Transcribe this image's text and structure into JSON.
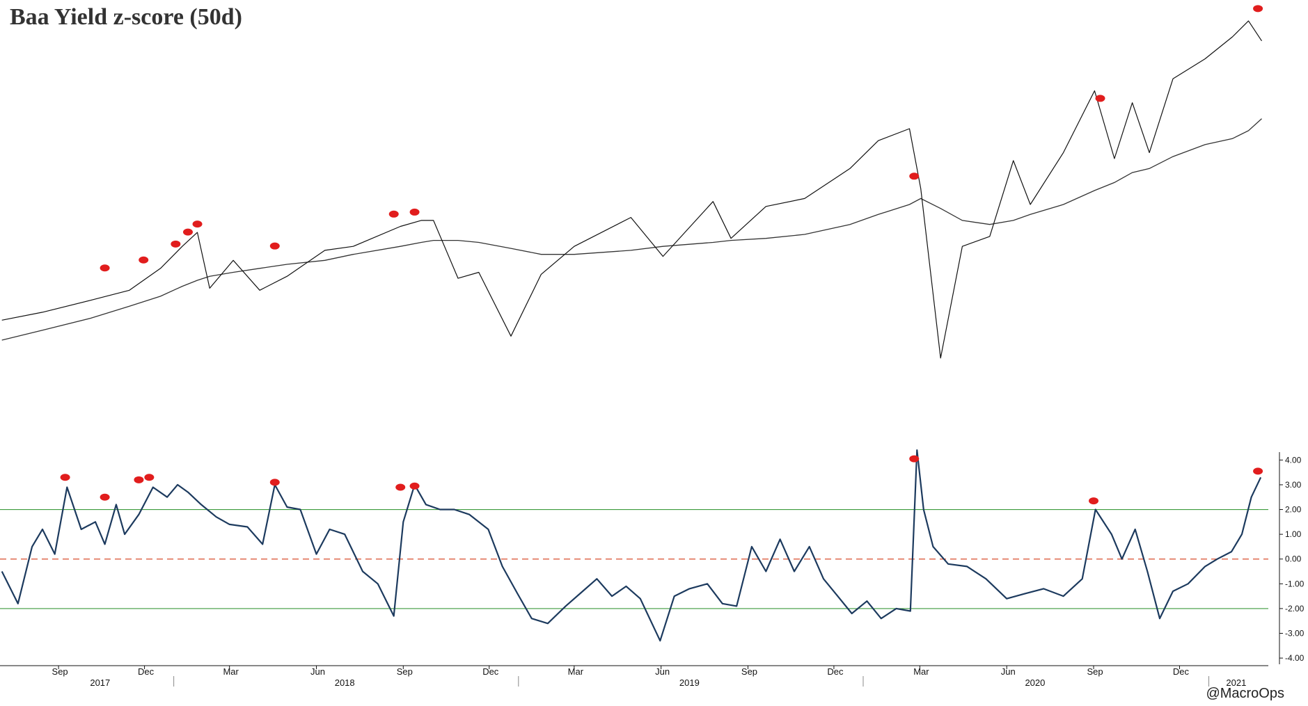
{
  "title": "Baa Yield z-score (50d)",
  "credit": "@MacroOps",
  "chart_data": [
    {
      "type": "line",
      "panel": "price",
      "title": "",
      "y_axis_labels": "none",
      "colors": {
        "price": "#111111",
        "moving_average": "#333333",
        "marker": "#e11d1d"
      },
      "x_dates": [
        "2017-07-03",
        "2017-08-15",
        "2017-10-05",
        "2017-11-15",
        "2017-12-18",
        "2018-01-10",
        "2018-01-26",
        "2018-02-08",
        "2018-03-05",
        "2018-04-02",
        "2018-05-01",
        "2018-06-10",
        "2018-07-10",
        "2018-08-29",
        "2018-09-20",
        "2018-10-03",
        "2018-10-29",
        "2018-11-20",
        "2018-12-24",
        "2019-01-25",
        "2019-03-01",
        "2019-04-30",
        "2019-06-03",
        "2019-07-26",
        "2019-08-14",
        "2019-09-20",
        "2019-10-31",
        "2019-12-18",
        "2020-01-17",
        "2020-02-19",
        "2020-03-02",
        "2020-03-23",
        "2020-04-15",
        "2020-05-14",
        "2020-06-08",
        "2020-06-26",
        "2020-07-31",
        "2020-09-02",
        "2020-09-23",
        "2020-10-12",
        "2020-10-30",
        "2020-11-24",
        "2020-12-28",
        "2021-01-26",
        "2021-02-12",
        "2021-02-26"
      ],
      "price": [
        2430,
        2470,
        2530,
        2580,
        2690,
        2800,
        2870,
        2590,
        2730,
        2580,
        2650,
        2780,
        2800,
        2900,
        2930,
        2930,
        2640,
        2670,
        2350,
        2660,
        2800,
        2945,
        2750,
        3025,
        2840,
        3000,
        3040,
        3190,
        3330,
        3390,
        3090,
        2240,
        2800,
        2850,
        3230,
        3010,
        3270,
        3580,
        3240,
        3520,
        3270,
        3640,
        3740,
        3850,
        3930,
        3830
      ],
      "moving_average": [
        2330,
        2380,
        2440,
        2500,
        2550,
        2600,
        2630,
        2650,
        2670,
        2690,
        2710,
        2730,
        2760,
        2800,
        2820,
        2830,
        2830,
        2820,
        2790,
        2760,
        2760,
        2780,
        2800,
        2820,
        2830,
        2840,
        2860,
        2910,
        2960,
        3010,
        3040,
        2990,
        2930,
        2910,
        2930,
        2960,
        3010,
        3080,
        3120,
        3170,
        3190,
        3250,
        3310,
        3340,
        3380,
        3440
      ],
      "signals": [
        {
          "date": "2017-10-20",
          "value": 2650
        },
        {
          "date": "2017-11-30",
          "value": 2690
        },
        {
          "date": "2018-01-03",
          "value": 2770
        },
        {
          "date": "2018-01-16",
          "value": 2830
        },
        {
          "date": "2018-01-26",
          "value": 2870
        },
        {
          "date": "2018-04-18",
          "value": 2760
        },
        {
          "date": "2018-08-22",
          "value": 2920
        },
        {
          "date": "2018-09-13",
          "value": 2930
        },
        {
          "date": "2020-02-24",
          "value": 3110
        },
        {
          "date": "2020-09-08",
          "value": 3500
        },
        {
          "date": "2021-02-22",
          "value": 3950
        }
      ],
      "ylim": [
        2100,
        4000
      ]
    },
    {
      "type": "line",
      "panel": "zscore",
      "title": "",
      "y_ticks": [
        "4.00",
        "3.00",
        "2.00",
        "1.00",
        "0.00",
        "-1.00",
        "-2.00",
        "-3.00",
        "-4.00"
      ],
      "y_tick_values": [
        4,
        3,
        2,
        1,
        0,
        -1,
        -2,
        -3,
        -4
      ],
      "ylim": [
        -4.25,
        4.6
      ],
      "reference_lines": [
        {
          "value": 2,
          "color": "#3c9a3c",
          "style": "solid"
        },
        {
          "value": 0,
          "color": "#d94c2c",
          "style": "dashed"
        },
        {
          "value": -2,
          "color": "#3c9a3c",
          "style": "solid"
        }
      ],
      "colors": {
        "line": "#1c3a5e",
        "marker": "#e11d1d"
      },
      "x_dates": [
        "2017-07-03",
        "2017-07-20",
        "2017-08-04",
        "2017-08-15",
        "2017-08-28",
        "2017-09-10",
        "2017-09-25",
        "2017-10-10",
        "2017-10-20",
        "2017-11-01",
        "2017-11-10",
        "2017-11-25",
        "2017-12-10",
        "2017-12-25",
        "2018-01-05",
        "2018-01-16",
        "2018-01-30",
        "2018-02-15",
        "2018-03-01",
        "2018-03-20",
        "2018-04-05",
        "2018-04-18",
        "2018-05-01",
        "2018-05-15",
        "2018-06-01",
        "2018-06-15",
        "2018-07-01",
        "2018-07-20",
        "2018-08-05",
        "2018-08-22",
        "2018-09-01",
        "2018-09-13",
        "2018-09-25",
        "2018-10-10",
        "2018-10-25",
        "2018-11-10",
        "2018-11-30",
        "2018-12-15",
        "2018-12-31",
        "2019-01-15",
        "2019-02-01",
        "2019-02-20",
        "2019-03-10",
        "2019-03-25",
        "2019-04-10",
        "2019-04-25",
        "2019-05-10",
        "2019-05-31",
        "2019-06-15",
        "2019-07-01",
        "2019-07-20",
        "2019-08-05",
        "2019-08-20",
        "2019-09-05",
        "2019-09-20",
        "2019-10-05",
        "2019-10-20",
        "2019-11-05",
        "2019-11-20",
        "2019-12-05",
        "2019-12-20",
        "2020-01-05",
        "2020-01-20",
        "2020-02-05",
        "2020-02-20",
        "2020-02-27",
        "2020-03-05",
        "2020-03-15",
        "2020-03-31",
        "2020-04-20",
        "2020-05-10",
        "2020-06-01",
        "2020-06-20",
        "2020-07-10",
        "2020-07-31",
        "2020-08-20",
        "2020-09-03",
        "2020-09-20",
        "2020-10-01",
        "2020-10-15",
        "2020-10-28",
        "2020-11-10",
        "2020-11-24",
        "2020-12-10",
        "2020-12-28",
        "2021-01-10",
        "2021-01-25",
        "2021-02-05",
        "2021-02-15",
        "2021-02-25"
      ],
      "values": [
        -0.5,
        -1.8,
        0.5,
        1.2,
        0.2,
        2.9,
        1.2,
        1.5,
        0.6,
        2.2,
        1.0,
        1.8,
        2.9,
        2.5,
        3.0,
        2.7,
        2.2,
        1.7,
        1.4,
        1.3,
        0.6,
        3.0,
        2.1,
        2.0,
        0.2,
        1.2,
        1.0,
        -0.5,
        -1.0,
        -2.3,
        1.5,
        3.0,
        2.2,
        2.0,
        2.0,
        1.8,
        1.2,
        -0.3,
        -1.4,
        -2.4,
        -2.6,
        -1.9,
        -1.3,
        -0.8,
        -1.5,
        -1.1,
        -1.6,
        -3.3,
        -1.5,
        -1.2,
        -1.0,
        -1.8,
        -1.9,
        0.5,
        -0.5,
        0.8,
        -0.5,
        0.5,
        -0.8,
        -1.5,
        -2.2,
        -1.7,
        -2.4,
        -2.0,
        -2.1,
        4.4,
        2.0,
        0.5,
        -0.2,
        -0.3,
        -0.8,
        -1.6,
        -1.4,
        -1.2,
        -1.5,
        -0.8,
        2.0,
        1.0,
        0.0,
        1.2,
        -0.5,
        -2.4,
        -1.3,
        -1.0,
        -0.3,
        0.0,
        0.3,
        1.0,
        2.5,
        3.3
      ],
      "signals": [
        {
          "date": "2017-09-08",
          "value": 3.3
        },
        {
          "date": "2017-10-20",
          "value": 2.5
        },
        {
          "date": "2017-11-25",
          "value": 3.2
        },
        {
          "date": "2017-12-06",
          "value": 3.3
        },
        {
          "date": "2018-04-18",
          "value": 3.1
        },
        {
          "date": "2018-08-29",
          "value": 2.9
        },
        {
          "date": "2018-09-13",
          "value": 2.95
        },
        {
          "date": "2020-02-24",
          "value": 4.05
        },
        {
          "date": "2020-09-01",
          "value": 2.35
        },
        {
          "date": "2021-02-22",
          "value": 3.55
        }
      ]
    }
  ],
  "x_axis": {
    "months": [
      {
        "label": "Sep",
        "date": "2017-09-01"
      },
      {
        "label": "Dec",
        "date": "2017-12-01"
      },
      {
        "label": "Mar",
        "date": "2018-03-01"
      },
      {
        "label": "Jun",
        "date": "2018-06-01"
      },
      {
        "label": "Sep",
        "date": "2018-09-01"
      },
      {
        "label": "Dec",
        "date": "2018-12-01"
      },
      {
        "label": "Mar",
        "date": "2019-03-01"
      },
      {
        "label": "Jun",
        "date": "2019-06-01"
      },
      {
        "label": "Sep",
        "date": "2019-09-01"
      },
      {
        "label": "Dec",
        "date": "2019-12-01"
      },
      {
        "label": "Mar",
        "date": "2020-03-01"
      },
      {
        "label": "Jun",
        "date": "2020-06-01"
      },
      {
        "label": "Sep",
        "date": "2020-09-01"
      },
      {
        "label": "Dec",
        "date": "2020-12-01"
      }
    ],
    "years": [
      {
        "label": "2017",
        "date": "2017-10-15"
      },
      {
        "label": "2018",
        "date": "2018-07-01"
      },
      {
        "label": "2019",
        "date": "2019-07-01"
      },
      {
        "label": "2020",
        "date": "2020-07-01"
      },
      {
        "label": "2021",
        "date": "2021-01-30"
      }
    ],
    "year_separators": [
      "2018-01-01",
      "2019-01-01",
      "2020-01-01",
      "2021-01-01"
    ],
    "range": [
      "2017-07-01",
      "2021-03-05"
    ]
  }
}
